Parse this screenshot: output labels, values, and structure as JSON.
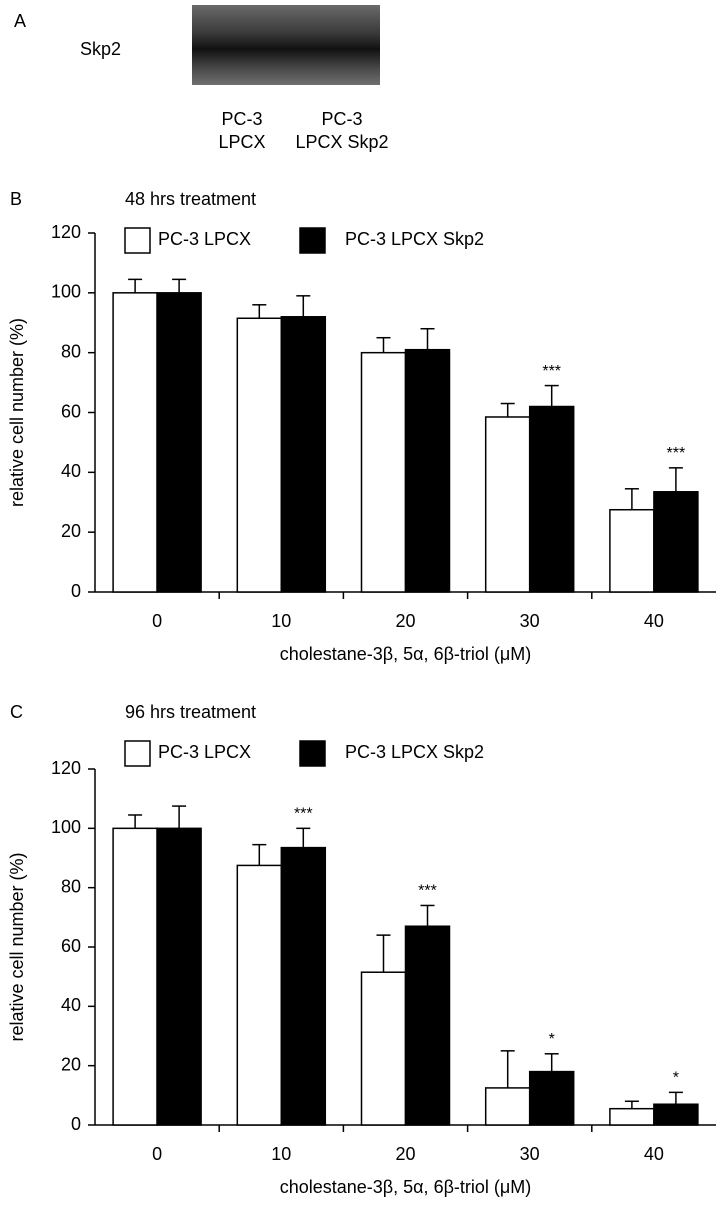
{
  "blot": {
    "panel_label": "A",
    "protein": "Skp2",
    "lanes": [
      [
        "PC-3",
        "LPCX"
      ],
      [
        "PC-3",
        "LPCX Skp2"
      ]
    ]
  },
  "chart_data": [
    {
      "type": "bar",
      "panel_label": "B",
      "title": "48 hrs treatment",
      "x_label": "cholestane-3β, 5α, 6β-triol (μM)",
      "y_label": "relative cell number (%)",
      "categories": [
        "0",
        "10",
        "20",
        "30",
        "40"
      ],
      "series": [
        {
          "name": "PC-3 LPCX",
          "color": "#ffffff",
          "values": [
            100,
            91.5,
            80,
            58.5,
            27.5
          ],
          "errors": [
            4.5,
            4.5,
            5,
            4.5,
            7
          ],
          "significance": [
            null,
            null,
            null,
            null,
            null
          ]
        },
        {
          "name": "PC-3 LPCX Skp2",
          "color": "#000000",
          "values": [
            100,
            92,
            81,
            62,
            33.5
          ],
          "errors": [
            4.5,
            7,
            7,
            7,
            8
          ],
          "significance": [
            null,
            null,
            null,
            "***",
            "***"
          ]
        }
      ],
      "ylim": [
        0,
        120
      ],
      "yticks": [
        0,
        20,
        40,
        60,
        80,
        100,
        120
      ]
    },
    {
      "type": "bar",
      "panel_label": "C",
      "title": "96 hrs treatment",
      "x_label": "cholestane-3β, 5α, 6β-triol (μM)",
      "y_label": "relative cell number (%)",
      "categories": [
        "0",
        "10",
        "20",
        "30",
        "40"
      ],
      "series": [
        {
          "name": "PC-3 LPCX",
          "color": "#ffffff",
          "values": [
            100,
            87.5,
            51.5,
            12.5,
            5.5
          ],
          "errors": [
            4.5,
            7,
            12.5,
            12.5,
            2.5
          ],
          "significance": [
            null,
            null,
            null,
            null,
            null
          ]
        },
        {
          "name": "PC-3 LPCX Skp2",
          "color": "#000000",
          "values": [
            100,
            93.5,
            67,
            18,
            7
          ],
          "errors": [
            7.5,
            6.5,
            7,
            6,
            4
          ],
          "significance": [
            null,
            "***",
            "***",
            "*",
            "*"
          ]
        }
      ],
      "ylim": [
        0,
        120
      ],
      "yticks": [
        0,
        20,
        40,
        60,
        80,
        100,
        120
      ]
    }
  ]
}
